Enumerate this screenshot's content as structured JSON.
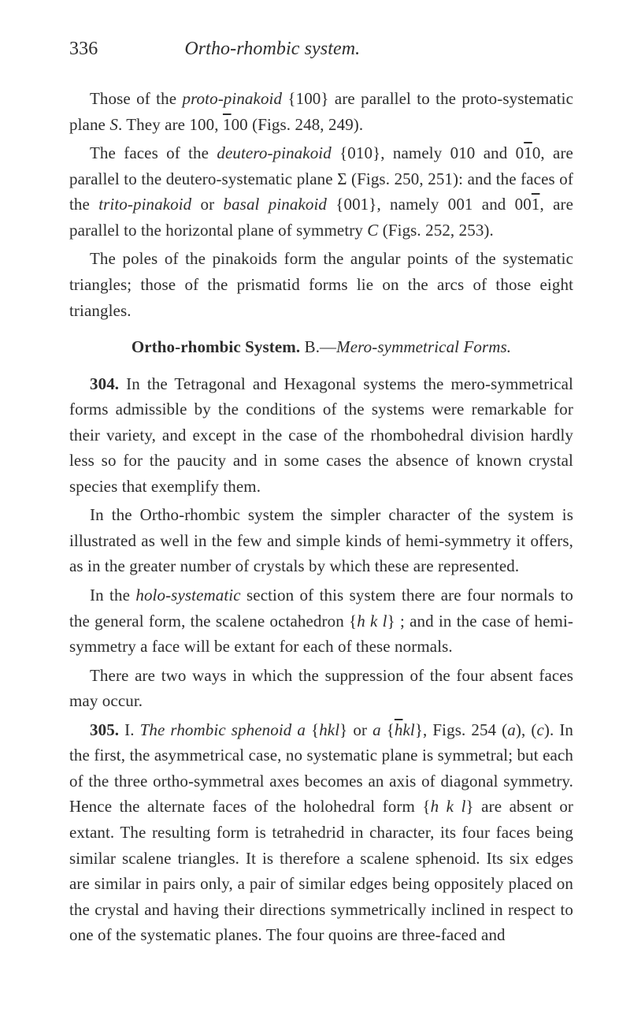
{
  "head": {
    "pageNumber": "336",
    "runningTitle": "Ortho-rhombic system."
  },
  "p1": {
    "a": "Those of the ",
    "b": "proto-pinakoid",
    "c": " {100} are parallel to the proto-systematic plane ",
    "d": "S",
    "e": ".  They are 100, ",
    "f": "1",
    "g": "00 (Figs. 248, 249)."
  },
  "p2": {
    "a": "The faces of the ",
    "b": "deutero-pinakoid",
    "c": " {010}, namely 010 and 0",
    "d": "1",
    "e": "0, are parallel to the deutero-systematic plane Σ (Figs. 250, 251): and the faces of the ",
    "f": "trito-pinakoid",
    "g": " or ",
    "h": "basal pinakoid",
    "i": " {001}, namely 001 and 00",
    "j": "1",
    "k": ", are parallel to the horizontal plane of symmetry ",
    "l": "C",
    "m": " (Figs. 252, 253)."
  },
  "p3": {
    "a": "The poles of the pinakoids form the angular points of the systematic triangles; those of the prismatid forms lie on the arcs of those eight triangles."
  },
  "heading": {
    "bold1": "Ortho-rhombic System.",
    "sep": "   B.—",
    "ital": "Mero-symmetrical Forms."
  },
  "p4": {
    "num": "304.",
    "a": " In the Tetragonal and Hexagonal systems the mero-symmetrical forms admissible by the conditions of the systems were remarkable for their variety, and except in the case of the rhombohedral division hardly less so for the paucity and in some cases the absence of known crystal species that exemplify them."
  },
  "p5": {
    "a": "In the Ortho-rhombic system the simpler character of the system is illustrated as well in the few and simple kinds of hemi-symmetry it offers, as in the greater number of crystals by which these are represented."
  },
  "p6": {
    "a": "In the ",
    "b": "holo-systematic",
    "c": " section of this system there are four normals to the general form, the scalene octahedron {",
    "d": "h k l",
    "e": "} ; and in the case of hemi-symmetry a face will be extant for each of these normals."
  },
  "p7": {
    "a": "There are two ways in which the suppression of the four absent faces may occur."
  },
  "p8": {
    "num": "305.",
    "a": " I. ",
    "b": "The rhombic sphenoid a",
    "c": " {",
    "d": "hkl",
    "e": "}  or ",
    "f": "a",
    "g": " {",
    "h": "h",
    "i": "kl",
    "j": "}, Figs. 254 (",
    "k": "a",
    "l": "), (",
    "m": "c",
    "n": ").  In the first, the asymmetrical case, no systematic plane is symmetral; but each of the three ortho-symmetral axes becomes an axis of diagonal symmetry.  Hence the alternate faces of the holohedral form {",
    "o": "h k l",
    "p": "} are absent or extant.  The resulting form is tetrahedrid in character, its four faces being similar scalene triangles.  It is therefore a scalene sphenoid.  Its six edges are similar in pairs only, a pair of similar edges being oppositely placed on the crystal and having their directions symmetrically inclined in respect to one of the systematic planes.  The four quoins are three-faced and"
  }
}
